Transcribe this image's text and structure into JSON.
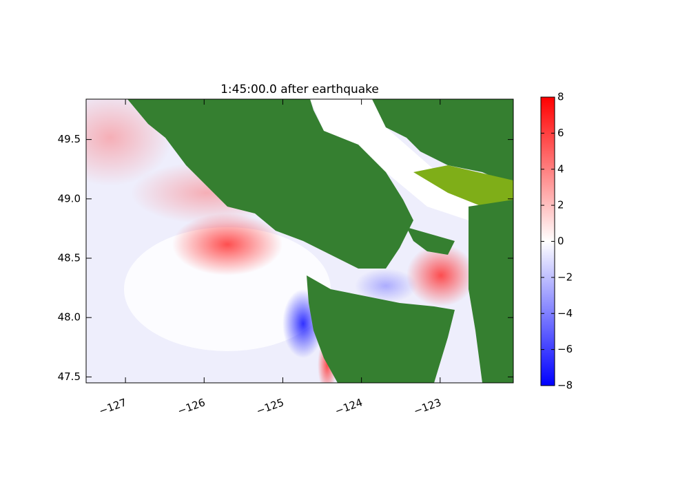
{
  "chart_data": {
    "type": "heatmap",
    "title": "1:45:00.0 after earthquake",
    "xlim": [
      -127.5,
      -122.07
    ],
    "ylim": [
      47.45,
      49.84
    ],
    "xticks": [
      {
        "value": -127,
        "label": "−127"
      },
      {
        "value": -126,
        "label": "−126"
      },
      {
        "value": -125,
        "label": "−125"
      },
      {
        "value": -124,
        "label": "−124"
      },
      {
        "value": -123,
        "label": "−123"
      }
    ],
    "yticks": [
      47.5,
      {
        "value": 48.0,
        "label": "48.0"
      },
      48.5,
      {
        "value": 49.0,
        "label": "49.0"
      },
      49.5
    ],
    "colormap": [
      "#0000ff",
      "#ffffff",
      "#ff0000"
    ],
    "clim": [
      -8,
      8
    ],
    "colorbar_ticks": [
      {
        "value": -8,
        "label": "−8"
      },
      {
        "value": -6,
        "label": "−6"
      },
      {
        "value": -4,
        "label": "−4"
      },
      {
        "value": -2,
        "label": "−2"
      },
      0,
      2,
      4,
      6,
      8
    ],
    "land_color": "#357f30"
  }
}
